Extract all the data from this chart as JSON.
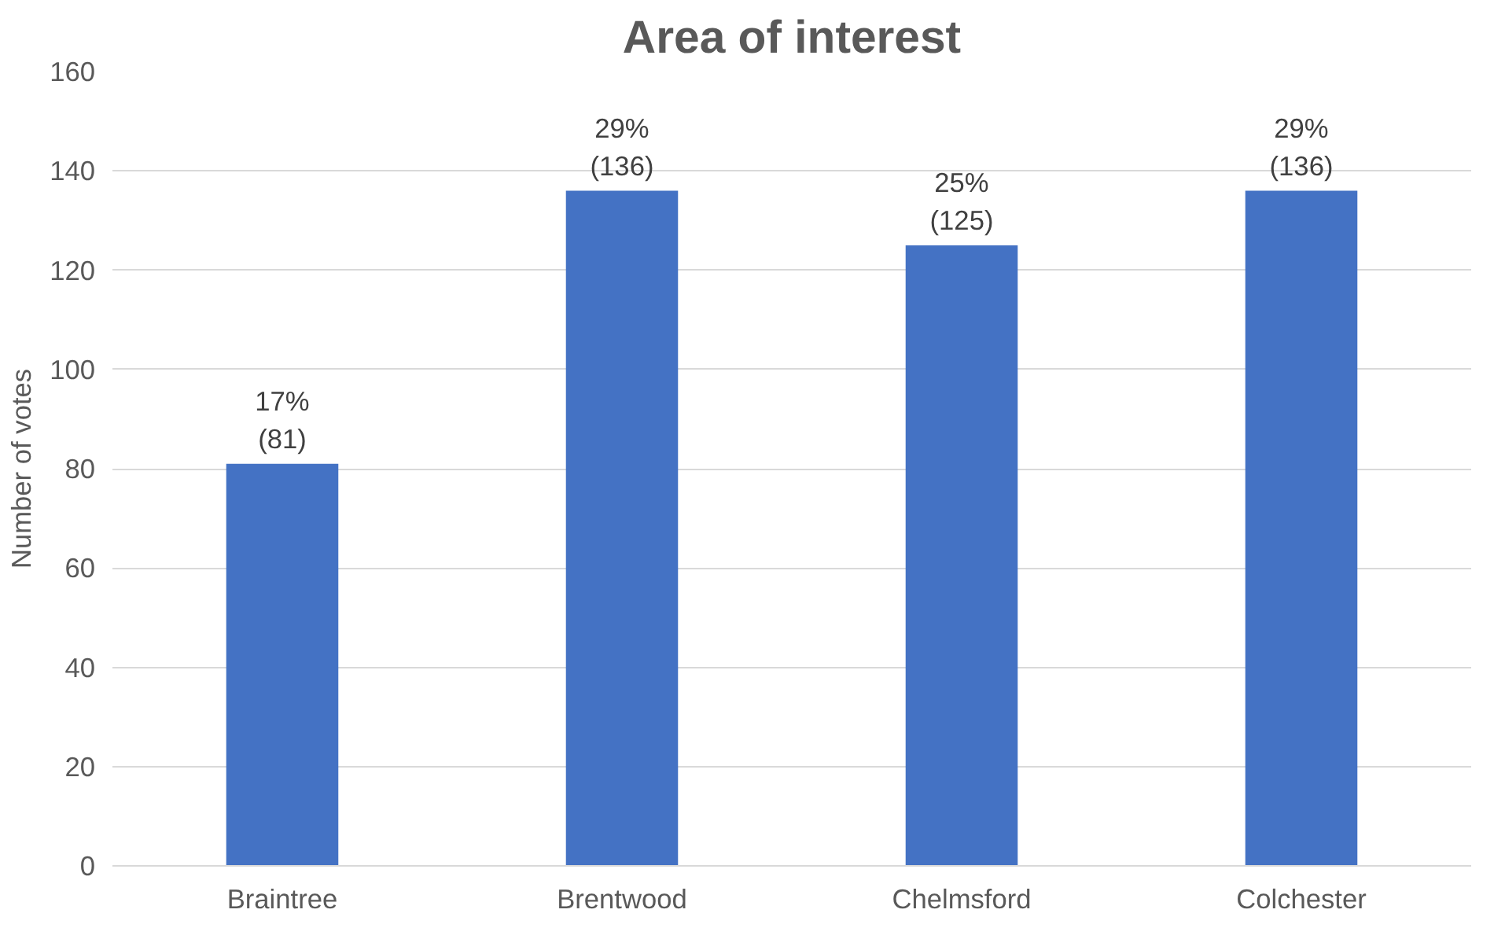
{
  "chart_data": {
    "type": "bar",
    "title": "Area of interest",
    "ylabel": "Number of votes",
    "categories": [
      "Braintree",
      "Brentwood",
      "Chelmsford",
      "Colchester"
    ],
    "values": [
      81,
      136,
      125,
      136
    ],
    "value_labels": [
      "17%\n(81)",
      "29%\n(136)",
      "25%\n(125)",
      "29%\n(136)"
    ],
    "color": "#4472c4",
    "ylim": [
      0,
      160
    ],
    "yticks": [
      0,
      20,
      40,
      60,
      80,
      100,
      120,
      140,
      160
    ],
    "grid": "y"
  }
}
